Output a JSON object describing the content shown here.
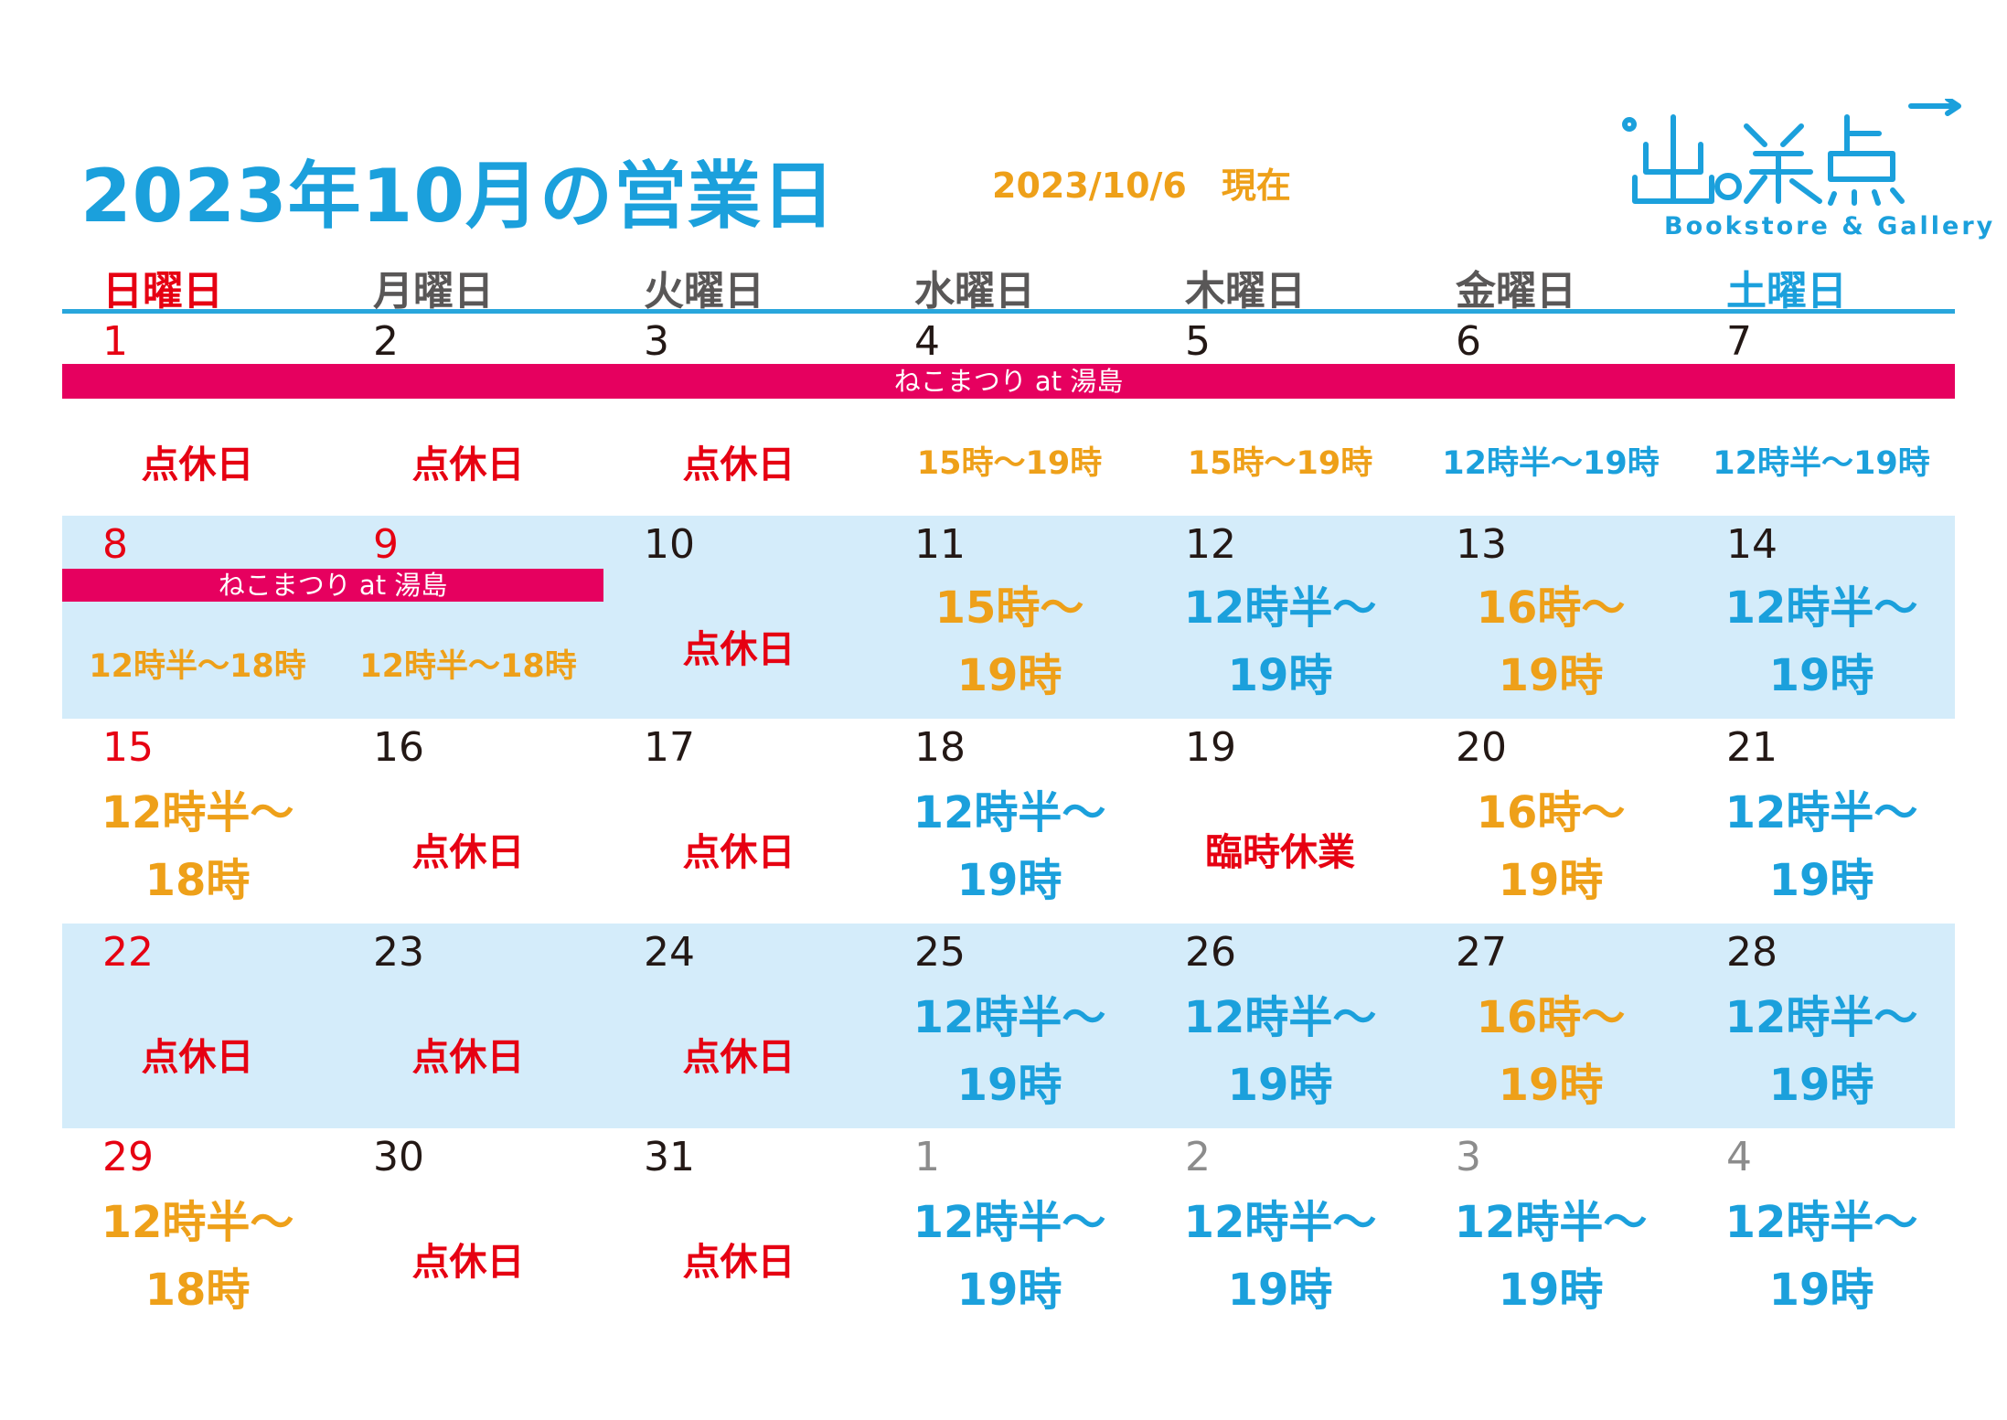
{
  "header": {
    "title": "2023年10月の営業日",
    "as_of": "2023/10/6　現在"
  },
  "logo": {
    "mark": "出発点",
    "subtitle": "Bookstore & Gallery"
  },
  "weekdays": [
    "日曜日",
    "月曜日",
    "火曜日",
    "水曜日",
    "木曜日",
    "金曜日",
    "土曜日"
  ],
  "event_label": "ねこまつり at 湯島",
  "weeks": [
    {
      "days": [
        {
          "num": "1",
          "status": "点休日"
        },
        {
          "num": "2",
          "status": "点休日"
        },
        {
          "num": "3",
          "status": "点休日"
        },
        {
          "num": "4",
          "status": "15時～19時"
        },
        {
          "num": "5",
          "status": "15時～19時"
        },
        {
          "num": "6",
          "status": "12時半～19時"
        },
        {
          "num": "7",
          "status": "12時半～19時"
        }
      ]
    },
    {
      "days": [
        {
          "num": "8",
          "status": "12時半～18時"
        },
        {
          "num": "9",
          "status": "12時半～18時"
        },
        {
          "num": "10",
          "status": "点休日"
        },
        {
          "num": "11",
          "status_l1": "15時～",
          "status_l2": "19時"
        },
        {
          "num": "12",
          "status_l1": "12時半～",
          "status_l2": "19時"
        },
        {
          "num": "13",
          "status_l1": "16時～",
          "status_l2": "19時"
        },
        {
          "num": "14",
          "status_l1": "12時半～",
          "status_l2": "19時"
        }
      ]
    },
    {
      "days": [
        {
          "num": "15",
          "status_l1": "12時半～",
          "status_l2": "18時"
        },
        {
          "num": "16",
          "status": "点休日"
        },
        {
          "num": "17",
          "status": "点休日"
        },
        {
          "num": "18",
          "status_l1": "12時半～",
          "status_l2": "19時"
        },
        {
          "num": "19",
          "status": "臨時休業"
        },
        {
          "num": "20",
          "status_l1": "16時～",
          "status_l2": "19時"
        },
        {
          "num": "21",
          "status_l1": "12時半～",
          "status_l2": "19時"
        }
      ]
    },
    {
      "days": [
        {
          "num": "22",
          "status": "点休日"
        },
        {
          "num": "23",
          "status": "点休日"
        },
        {
          "num": "24",
          "status": "点休日"
        },
        {
          "num": "25",
          "status_l1": "12時半～",
          "status_l2": "19時"
        },
        {
          "num": "26",
          "status_l1": "12時半～",
          "status_l2": "19時"
        },
        {
          "num": "27",
          "status_l1": "16時～",
          "status_l2": "19時"
        },
        {
          "num": "28",
          "status_l1": "12時半～",
          "status_l2": "19時"
        }
      ]
    },
    {
      "days": [
        {
          "num": "29",
          "status_l1": "12時半～",
          "status_l2": "18時"
        },
        {
          "num": "30",
          "status": "点休日"
        },
        {
          "num": "31",
          "status": "点休日"
        },
        {
          "num": "1",
          "status_l1": "12時半～",
          "status_l2": "19時"
        },
        {
          "num": "2",
          "status_l1": "12時半～",
          "status_l2": "19時"
        },
        {
          "num": "3",
          "status_l1": "12時半～",
          "status_l2": "19時"
        },
        {
          "num": "4",
          "status_l1": "12時半～",
          "status_l2": "19時"
        }
      ]
    }
  ],
  "colors": {
    "title_blue": "#1ba0dc",
    "holiday_red": "#e60012",
    "hours_orange": "#eea019",
    "hours_blue": "#1ba0dc",
    "event_pink": "#e6005f",
    "row_tint": "#d4ecfa"
  }
}
